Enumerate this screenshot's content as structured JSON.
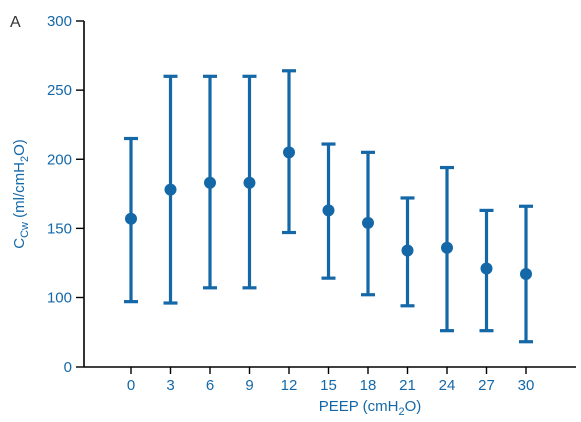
{
  "chart_data": {
    "type": "scatter",
    "panel_label": "A",
    "xlabel": {
      "main": "PEEP (cmH",
      "sub": "2",
      "tail": "O)"
    },
    "ylabel": {
      "main": "C",
      "sub": "Cw",
      "tail": " (ml/cmH",
      "sub2": "2",
      "tail2": "O)"
    },
    "categories": [
      "0",
      "3",
      "6",
      "9",
      "12",
      "15",
      "18",
      "21",
      "24",
      "27",
      "30"
    ],
    "yticks": [
      0,
      100,
      150,
      200,
      250,
      300
    ],
    "ytick_labels": [
      "0",
      "100",
      "150",
      "200",
      "250",
      "300"
    ],
    "series": [
      {
        "values": [
          157,
          178,
          183,
          183,
          205,
          163,
          154,
          134,
          136,
          121,
          117
        ],
        "error_low": [
          97,
          96,
          107,
          107,
          147,
          114,
          102,
          94,
          76,
          76,
          68
        ],
        "error_high": [
          215,
          260,
          260,
          260,
          264,
          211,
          205,
          172,
          194,
          163,
          166
        ]
      }
    ],
    "grid": false,
    "legend": "none",
    "colors": {
      "series": "#1468a8",
      "axis_text": "#1468a8",
      "axes": "#000000",
      "panel_letter": "#333333"
    }
  }
}
